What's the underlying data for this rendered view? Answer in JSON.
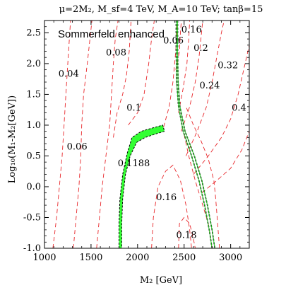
{
  "chart_data": {
    "type": "contour",
    "title": "μ=2M₂, M_sf=4 TeV, M_A=10 TeV; tanβ=15",
    "xlabel": "M₂ [GeV]",
    "ylabel": "Log₁₀(M₁-M₂[GeV])",
    "xlim": [
      1000,
      3200
    ],
    "ylim": [
      -1.0,
      2.7
    ],
    "xticks": [
      "1000",
      "1500",
      "2000",
      "2500",
      "3000"
    ],
    "yticks": [
      "-1.0",
      "-0.5",
      "0.0",
      "0.5",
      "1.0",
      "1.5",
      "2.0",
      "2.5"
    ],
    "annotation": "Sommerfeld enhanced",
    "contour_labels": [
      {
        "text": "0.04",
        "x": 1260,
        "y": 1.83
      },
      {
        "text": "0.06",
        "x": 1350,
        "y": 0.65
      },
      {
        "text": "0.08",
        "x": 1770,
        "y": 2.18
      },
      {
        "text": "0.1",
        "x": 1960,
        "y": 1.28
      },
      {
        "text": "0.1188",
        "x": 1960,
        "y": 0.38
      },
      {
        "text": "0.06",
        "x": 2385,
        "y": 2.37
      },
      {
        "text": "0.16",
        "x": 2580,
        "y": 2.55
      },
      {
        "text": "0.2",
        "x": 2680,
        "y": 2.25
      },
      {
        "text": "0.32",
        "x": 2970,
        "y": 1.97
      },
      {
        "text": "0.24",
        "x": 2775,
        "y": 1.64
      },
      {
        "text": "0.4",
        "x": 3090,
        "y": 1.28
      },
      {
        "text": "0.16",
        "x": 2310,
        "y": -0.17
      },
      {
        "text": "0.18",
        "x": 2525,
        "y": -0.79
      }
    ],
    "dashed_contours": [
      [
        [
          1090,
          -1.0
        ],
        [
          1130,
          -0.5
        ],
        [
          1160,
          0.0
        ],
        [
          1190,
          0.5
        ],
        [
          1210,
          1.0
        ],
        [
          1230,
          1.5
        ],
        [
          1250,
          2.0
        ],
        [
          1280,
          2.7
        ]
      ],
      [
        [
          1310,
          -1.0
        ],
        [
          1340,
          -0.5
        ],
        [
          1370,
          0.0
        ],
        [
          1390,
          0.5
        ],
        [
          1400,
          1.0
        ],
        [
          1420,
          1.5
        ],
        [
          1460,
          2.0
        ],
        [
          1510,
          2.7
        ]
      ],
      [
        [
          1560,
          -1.0
        ],
        [
          1590,
          -0.5
        ],
        [
          1620,
          0.0
        ],
        [
          1660,
          0.5
        ],
        [
          1700,
          1.0
        ],
        [
          1720,
          1.5
        ],
        [
          1740,
          2.0
        ],
        [
          1760,
          2.4
        ],
        [
          1790,
          2.7
        ]
      ],
      [
        [
          1740,
          0.8
        ],
        [
          1780,
          1.2
        ],
        [
          1840,
          1.5
        ],
        [
          1880,
          1.8
        ],
        [
          1910,
          2.2
        ],
        [
          1930,
          2.7
        ]
      ],
      [
        [
          1900,
          1.0
        ],
        [
          2000,
          1.2
        ],
        [
          2070,
          1.5
        ],
        [
          2120,
          2.0
        ],
        [
          2150,
          2.4
        ],
        [
          2180,
          2.7
        ]
      ],
      [
        [
          2280,
          0.97
        ],
        [
          2340,
          1.3
        ],
        [
          2380,
          1.7
        ],
        [
          2410,
          2.2
        ],
        [
          2430,
          2.7
        ]
      ],
      [
        [
          2410,
          1.9
        ],
        [
          2450,
          2.2
        ],
        [
          2460,
          2.5
        ],
        [
          2470,
          2.7
        ]
      ],
      [
        [
          2440,
          1.2
        ],
        [
          2490,
          1.6
        ],
        [
          2530,
          2.0
        ],
        [
          2550,
          2.4
        ],
        [
          2560,
          2.7
        ]
      ],
      [
        [
          2470,
          0.9
        ],
        [
          2560,
          1.3
        ],
        [
          2620,
          1.7
        ],
        [
          2660,
          2.1
        ],
        [
          2680,
          2.4
        ],
        [
          2700,
          2.7
        ]
      ],
      [
        [
          2520,
          0.5
        ],
        [
          2640,
          0.9
        ],
        [
          2740,
          1.3
        ],
        [
          2800,
          1.7
        ],
        [
          2850,
          2.1
        ],
        [
          2900,
          2.5
        ],
        [
          2930,
          2.7
        ]
      ],
      [
        [
          2600,
          0.2
        ],
        [
          2760,
          0.5
        ],
        [
          2900,
          0.8
        ],
        [
          3000,
          1.1
        ],
        [
          3080,
          1.5
        ],
        [
          3140,
          1.9
        ],
        [
          3200,
          2.3
        ]
      ],
      [
        [
          2690,
          -0.1
        ],
        [
          2850,
          0.1
        ],
        [
          3000,
          0.3
        ],
        [
          3120,
          0.6
        ],
        [
          3200,
          0.9
        ]
      ],
      [
        [
          2150,
          -1.0
        ],
        [
          2170,
          -0.5
        ],
        [
          2220,
          0.0
        ],
        [
          2300,
          0.25
        ],
        [
          2380,
          0.35
        ],
        [
          2460,
          0.1
        ],
        [
          2520,
          -0.3
        ],
        [
          2560,
          -0.7
        ],
        [
          2580,
          -1.0
        ]
      ],
      [
        [
          2440,
          -1.0
        ],
        [
          2450,
          -0.6
        ],
        [
          2500,
          -0.5
        ],
        [
          2560,
          -0.6
        ],
        [
          2600,
          -0.85
        ],
        [
          2620,
          -1.0
        ]
      ],
      [
        [
          2500,
          0.85
        ],
        [
          2550,
          0.5
        ],
        [
          2620,
          0.1
        ],
        [
          2700,
          -0.3
        ],
        [
          2760,
          -0.6
        ],
        [
          2800,
          -1.0
        ]
      ],
      [
        [
          2880,
          -1.0
        ],
        [
          2860,
          -0.6
        ],
        [
          2840,
          -0.2
        ],
        [
          2820,
          0.1
        ],
        [
          2760,
          0.45
        ],
        [
          2680,
          0.75
        ],
        [
          2600,
          1.0
        ],
        [
          2520,
          1.3
        ]
      ]
    ],
    "black_contours": [
      [
        [
          2415,
          2.7
        ],
        [
          2415,
          2.2
        ],
        [
          2420,
          1.7
        ],
        [
          2440,
          1.3
        ],
        [
          2490,
          0.9
        ],
        [
          2580,
          0.5
        ],
        [
          2660,
          0.1
        ],
        [
          2720,
          -0.3
        ],
        [
          2770,
          -0.7
        ],
        [
          2800,
          -1.0
        ]
      ],
      [
        [
          2430,
          2.7
        ],
        [
          2430,
          2.2
        ],
        [
          2435,
          1.7
        ],
        [
          2455,
          1.3
        ],
        [
          2510,
          0.9
        ],
        [
          2610,
          0.5
        ],
        [
          2690,
          0.1
        ],
        [
          2750,
          -0.3
        ],
        [
          2800,
          -0.7
        ],
        [
          2830,
          -1.0
        ]
      ]
    ],
    "green_band": [
      [
        1800,
        -1.0
      ],
      [
        1800,
        -0.6
      ],
      [
        1810,
        -0.2
      ],
      [
        1840,
        0.2
      ],
      [
        1890,
        0.55
      ],
      [
        1940,
        0.8
      ],
      [
        2040,
        0.9
      ],
      [
        2150,
        0.95
      ],
      [
        2270,
        1.0
      ],
      [
        2290,
        0.9
      ],
      [
        2200,
        0.86
      ],
      [
        2080,
        0.8
      ],
      [
        1990,
        0.72
      ],
      [
        1920,
        0.5
      ],
      [
        1870,
        0.2
      ],
      [
        1840,
        -0.2
      ],
      [
        1830,
        -0.6
      ],
      [
        1830,
        -1.0
      ]
    ],
    "grid": false
  }
}
